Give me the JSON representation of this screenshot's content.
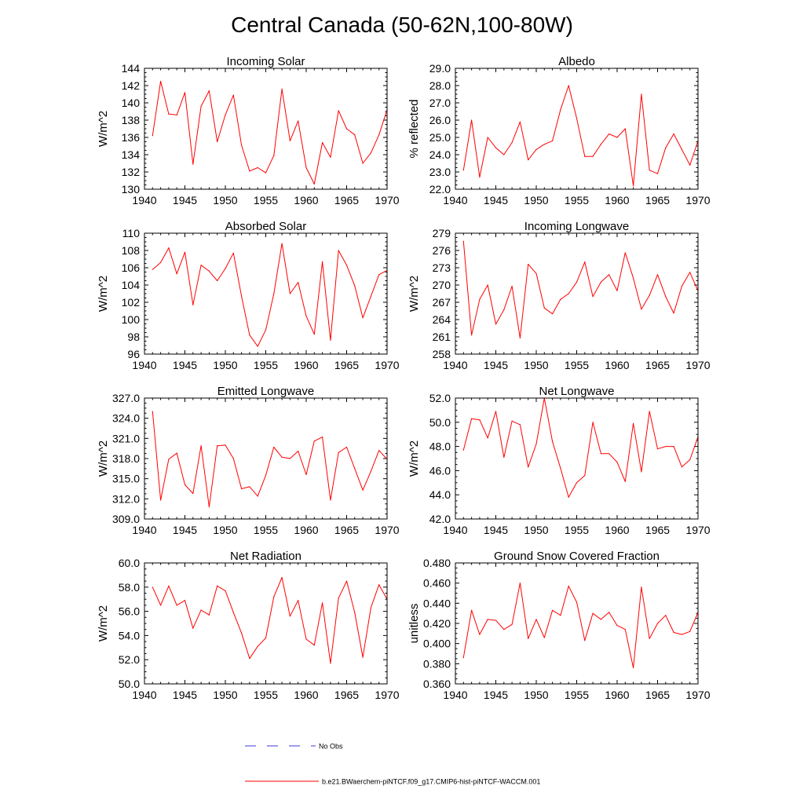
{
  "figure": {
    "title": "Central Canada (50-62N,100-80W)",
    "colors": {
      "model": "#ff0000",
      "obs": "#3b3bd6",
      "axis": "#000000"
    }
  },
  "legend": {
    "obs_label": "No Obs",
    "model_label": "b.e21.BWaerchem-piNTCF.f09_g17.CMIP6-hist-piNTCF-WACCM.001"
  },
  "chart_data": [
    {
      "type": "line",
      "title": "Incoming Solar",
      "xlabel": "",
      "ylabel": "W/m^2",
      "xlim": [
        1940,
        1970
      ],
      "ylim": [
        130,
        144
      ],
      "xticks": [
        "1940",
        "1945",
        "1950",
        "1955",
        "1960",
        "1965",
        "1970"
      ],
      "yticks": [
        "130",
        "132",
        "134",
        "136",
        "138",
        "140",
        "142",
        "144"
      ],
      "x": [
        1941,
        1942,
        1943,
        1944,
        1945,
        1946,
        1947,
        1948,
        1949,
        1950,
        1951,
        1952,
        1953,
        1954,
        1955,
        1956,
        1957,
        1958,
        1959,
        1960,
        1961,
        1962,
        1963,
        1964,
        1965,
        1966,
        1967,
        1968,
        1969,
        1970
      ],
      "series": [
        {
          "values": [
            136.2,
            142.5,
            138.7,
            138.6,
            141.2,
            132.9,
            139.6,
            141.4,
            135.5,
            138.6,
            140.9,
            135.1,
            132.1,
            132.5,
            131.9,
            133.9,
            141.6,
            135.6,
            137.9,
            132.5,
            130.6,
            135.4,
            133.7,
            139.1,
            137.0,
            136.3,
            133.0,
            134.2,
            136.3,
            139.2
          ]
        }
      ]
    },
    {
      "type": "line",
      "title": "Albedo",
      "xlabel": "",
      "ylabel": "% reflected",
      "xlim": [
        1940,
        1970
      ],
      "ylim": [
        22,
        29
      ],
      "xticks": [
        "1940",
        "1945",
        "1950",
        "1955",
        "1960",
        "1965",
        "1970"
      ],
      "yticks": [
        "22.0",
        "23.0",
        "24.0",
        "25.0",
        "26.0",
        "27.0",
        "28.0",
        "29.0"
      ],
      "x": [
        1941,
        1942,
        1943,
        1944,
        1945,
        1946,
        1947,
        1948,
        1949,
        1950,
        1951,
        1952,
        1953,
        1954,
        1955,
        1956,
        1957,
        1958,
        1959,
        1960,
        1961,
        1962,
        1963,
        1964,
        1965,
        1966,
        1967,
        1968,
        1969,
        1970
      ],
      "series": [
        {
          "values": [
            23.1,
            26.0,
            22.7,
            25.0,
            24.4,
            24.0,
            24.7,
            25.9,
            23.7,
            24.3,
            24.6,
            24.8,
            26.6,
            28.0,
            26.1,
            23.9,
            23.9,
            24.6,
            25.2,
            25.0,
            25.5,
            22.2,
            27.5,
            23.1,
            22.9,
            24.4,
            25.2,
            24.3,
            23.4,
            24.8
          ]
        }
      ]
    },
    {
      "type": "line",
      "title": "Absorbed Solar",
      "xlabel": "",
      "ylabel": "W/m^2",
      "xlim": [
        1940,
        1970
      ],
      "ylim": [
        96,
        110
      ],
      "xticks": [
        "1940",
        "1945",
        "1950",
        "1955",
        "1960",
        "1965",
        "1970"
      ],
      "yticks": [
        "96",
        "98",
        "100",
        "102",
        "104",
        "106",
        "108",
        "110"
      ],
      "x": [
        1941,
        1942,
        1943,
        1944,
        1945,
        1946,
        1947,
        1948,
        1949,
        1950,
        1951,
        1952,
        1953,
        1954,
        1955,
        1956,
        1957,
        1958,
        1959,
        1960,
        1961,
        1962,
        1963,
        1964,
        1965,
        1966,
        1967,
        1968,
        1969,
        1970
      ],
      "series": [
        {
          "values": [
            105.8,
            106.6,
            108.3,
            105.3,
            107.8,
            101.7,
            106.3,
            105.6,
            104.5,
            105.9,
            107.7,
            102.7,
            98.2,
            96.9,
            98.8,
            103.0,
            108.8,
            103.0,
            104.3,
            100.4,
            98.3,
            106.7,
            97.6,
            108.0,
            106.3,
            103.9,
            100.2,
            102.7,
            105.2,
            105.7
          ]
        }
      ]
    },
    {
      "type": "line",
      "title": "Incoming Longwave",
      "xlabel": "",
      "ylabel": "W/m^2",
      "xlim": [
        1940,
        1970
      ],
      "ylim": [
        258,
        279
      ],
      "xticks": [
        "1940",
        "1945",
        "1950",
        "1955",
        "1960",
        "1965",
        "1970"
      ],
      "yticks": [
        "258",
        "261",
        "264",
        "267",
        "270",
        "273",
        "276",
        "279"
      ],
      "x": [
        1941,
        1942,
        1943,
        1944,
        1945,
        1946,
        1947,
        1948,
        1949,
        1950,
        1951,
        1952,
        1953,
        1954,
        1955,
        1956,
        1957,
        1958,
        1959,
        1960,
        1961,
        1962,
        1963,
        1964,
        1965,
        1966,
        1967,
        1968,
        1969,
        1970
      ],
      "series": [
        {
          "values": [
            277.6,
            261.3,
            267.5,
            270.0,
            263.2,
            265.7,
            269.8,
            260.8,
            273.6,
            272.0,
            266.0,
            265.0,
            267.5,
            268.5,
            270.5,
            274.0,
            268.0,
            270.5,
            271.8,
            269.0,
            275.6,
            271.2,
            265.8,
            268.2,
            271.8,
            268.0,
            265.1,
            269.8,
            272.2,
            269.0
          ]
        }
      ]
    },
    {
      "type": "line",
      "title": "Emitted Longwave",
      "xlabel": "",
      "ylabel": "W/m^2",
      "xlim": [
        1940,
        1970
      ],
      "ylim": [
        309,
        327
      ],
      "xticks": [
        "1940",
        "1945",
        "1950",
        "1955",
        "1960",
        "1965",
        "1970"
      ],
      "yticks": [
        "309.0",
        "312.0",
        "315.0",
        "318.0",
        "321.0",
        "324.0",
        "327.0"
      ],
      "x": [
        1941,
        1942,
        1943,
        1944,
        1945,
        1946,
        1947,
        1948,
        1949,
        1950,
        1951,
        1952,
        1953,
        1954,
        1955,
        1956,
        1957,
        1958,
        1959,
        1960,
        1961,
        1962,
        1963,
        1964,
        1965,
        1966,
        1967,
        1968,
        1969,
        1970
      ],
      "series": [
        {
          "values": [
            325.0,
            311.8,
            317.9,
            318.8,
            314.1,
            312.8,
            319.9,
            310.8,
            319.9,
            320.0,
            318.0,
            313.5,
            313.8,
            312.4,
            315.5,
            319.7,
            318.2,
            318.0,
            319.1,
            315.6,
            320.6,
            321.2,
            311.8,
            318.9,
            319.7,
            316.5,
            313.3,
            316.1,
            319.2,
            317.9
          ]
        }
      ]
    },
    {
      "type": "line",
      "title": "Net Longwave",
      "xlabel": "",
      "ylabel": "W/m^2",
      "xlim": [
        1940,
        1970
      ],
      "ylim": [
        42,
        52
      ],
      "xticks": [
        "1940",
        "1945",
        "1950",
        "1955",
        "1960",
        "1965",
        "1970"
      ],
      "yticks": [
        "42.0",
        "44.0",
        "46.0",
        "48.0",
        "50.0",
        "52.0"
      ],
      "x": [
        1941,
        1942,
        1943,
        1944,
        1945,
        1946,
        1947,
        1948,
        1949,
        1950,
        1951,
        1952,
        1953,
        1954,
        1955,
        1956,
        1957,
        1958,
        1959,
        1960,
        1961,
        1962,
        1963,
        1964,
        1965,
        1966,
        1967,
        1968,
        1969,
        1970
      ],
      "series": [
        {
          "values": [
            47.7,
            50.3,
            50.2,
            48.7,
            50.9,
            47.1,
            50.1,
            49.8,
            46.3,
            48.2,
            52.0,
            48.4,
            46.2,
            43.8,
            45.0,
            45.6,
            50.0,
            47.4,
            47.4,
            46.7,
            45.1,
            49.9,
            45.9,
            50.9,
            47.8,
            48.0,
            48.0,
            46.3,
            46.9,
            48.8
          ]
        }
      ]
    },
    {
      "type": "line",
      "title": "Net Radiation",
      "xlabel": "",
      "ylabel": "W/m^2",
      "xlim": [
        1940,
        1970
      ],
      "ylim": [
        50,
        60
      ],
      "xticks": [
        "1940",
        "1945",
        "1950",
        "1955",
        "1960",
        "1965",
        "1970"
      ],
      "yticks": [
        "50.0",
        "52.0",
        "54.0",
        "56.0",
        "58.0",
        "60.0"
      ],
      "x": [
        1941,
        1942,
        1943,
        1944,
        1945,
        1946,
        1947,
        1948,
        1949,
        1950,
        1951,
        1952,
        1953,
        1954,
        1955,
        1956,
        1957,
        1958,
        1959,
        1960,
        1961,
        1962,
        1963,
        1964,
        1965,
        1966,
        1967,
        1968,
        1969,
        1970
      ],
      "series": [
        {
          "values": [
            58.0,
            56.5,
            58.1,
            56.5,
            56.9,
            54.6,
            56.1,
            55.7,
            58.1,
            57.7,
            55.9,
            54.2,
            52.1,
            53.1,
            53.8,
            57.2,
            58.8,
            55.6,
            56.9,
            53.7,
            53.2,
            56.7,
            51.7,
            57.1,
            58.5,
            55.9,
            52.2,
            56.3,
            58.2,
            57.0
          ]
        }
      ]
    },
    {
      "type": "line",
      "title": "Ground Snow Covered Fraction",
      "xlabel": "",
      "ylabel": "unitless",
      "xlim": [
        1940,
        1970
      ],
      "ylim": [
        0.36,
        0.48
      ],
      "xticks": [
        "1940",
        "1945",
        "1950",
        "1955",
        "1960",
        "1965",
        "1970"
      ],
      "yticks": [
        "0.360",
        "0.380",
        "0.400",
        "0.420",
        "0.440",
        "0.460",
        "0.480"
      ],
      "x": [
        1941,
        1942,
        1943,
        1944,
        1945,
        1946,
        1947,
        1948,
        1949,
        1950,
        1951,
        1952,
        1953,
        1954,
        1955,
        1956,
        1957,
        1958,
        1959,
        1960,
        1961,
        1962,
        1963,
        1964,
        1965,
        1966,
        1967,
        1968,
        1969,
        1970
      ],
      "series": [
        {
          "values": [
            0.386,
            0.433,
            0.409,
            0.424,
            0.423,
            0.414,
            0.419,
            0.46,
            0.405,
            0.424,
            0.406,
            0.433,
            0.428,
            0.457,
            0.441,
            0.403,
            0.43,
            0.424,
            0.431,
            0.418,
            0.414,
            0.376,
            0.456,
            0.405,
            0.42,
            0.428,
            0.411,
            0.409,
            0.412,
            0.431
          ]
        }
      ]
    }
  ]
}
